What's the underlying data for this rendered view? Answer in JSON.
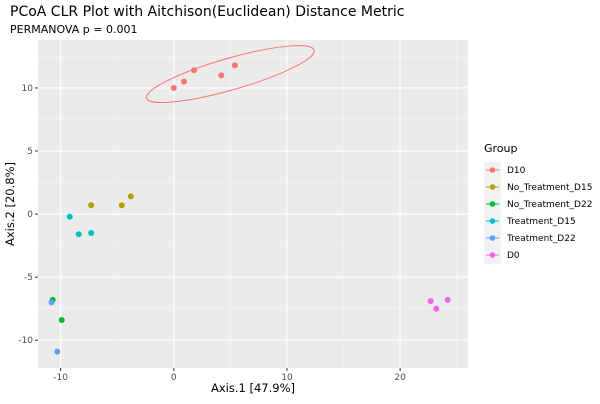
{
  "chart_data": {
    "type": "scatter",
    "title": "PCoA CLR Plot with Aitchison(Euclidean) Distance Metric",
    "subtitle": "PERMANOVA p = 0.001",
    "xlabel": "Axis.1   [47.9%]",
    "ylabel": "Axis.2   [20.8%]",
    "xlim": [
      -12,
      26
    ],
    "ylim": [
      -12.2,
      13.8
    ],
    "x_ticks": [
      -10,
      0,
      10,
      20
    ],
    "x_tick_labels": [
      "-10",
      "0",
      "10",
      "20"
    ],
    "y_ticks": [
      10,
      5,
      0,
      -5,
      -10
    ],
    "y_tick_labels": [
      "10",
      "5",
      "0",
      "-5",
      "-10"
    ],
    "grid": true,
    "legend_title": "Group",
    "legend_position": "right",
    "series": [
      {
        "name": "D10",
        "color": "#F8766D",
        "points": [
          [
            0.0,
            10.0
          ],
          [
            0.9,
            10.5
          ],
          [
            1.8,
            11.4
          ],
          [
            4.2,
            11.0
          ],
          [
            5.4,
            11.8
          ]
        ],
        "ellipse": {
          "cx": 5.0,
          "cy": 11.1,
          "rx": 7.7,
          "ry": 1.4,
          "angle_deg": -16
        }
      },
      {
        "name": "No_Treatment_D15",
        "color": "#B79F00",
        "points": [
          [
            -7.3,
            0.7
          ],
          [
            -4.6,
            0.7
          ],
          [
            -3.8,
            1.4
          ]
        ]
      },
      {
        "name": "No_Treatment_D22",
        "color": "#00BA38",
        "points": [
          [
            -10.7,
            -6.8
          ],
          [
            -9.9,
            -8.4
          ]
        ]
      },
      {
        "name": "Treatment_D15",
        "color": "#00BFC4",
        "points": [
          [
            -9.2,
            -0.2
          ],
          [
            -8.4,
            -1.6
          ],
          [
            -7.3,
            -1.5
          ]
        ]
      },
      {
        "name": "Treatment_D22",
        "color": "#619CFF",
        "points": [
          [
            -10.8,
            -7.0
          ],
          [
            -10.3,
            -10.9
          ]
        ]
      },
      {
        "name": "D0",
        "color": "#F564E3",
        "points": [
          [
            22.7,
            -6.9
          ],
          [
            23.2,
            -7.5
          ],
          [
            24.2,
            -6.8
          ]
        ]
      }
    ]
  }
}
